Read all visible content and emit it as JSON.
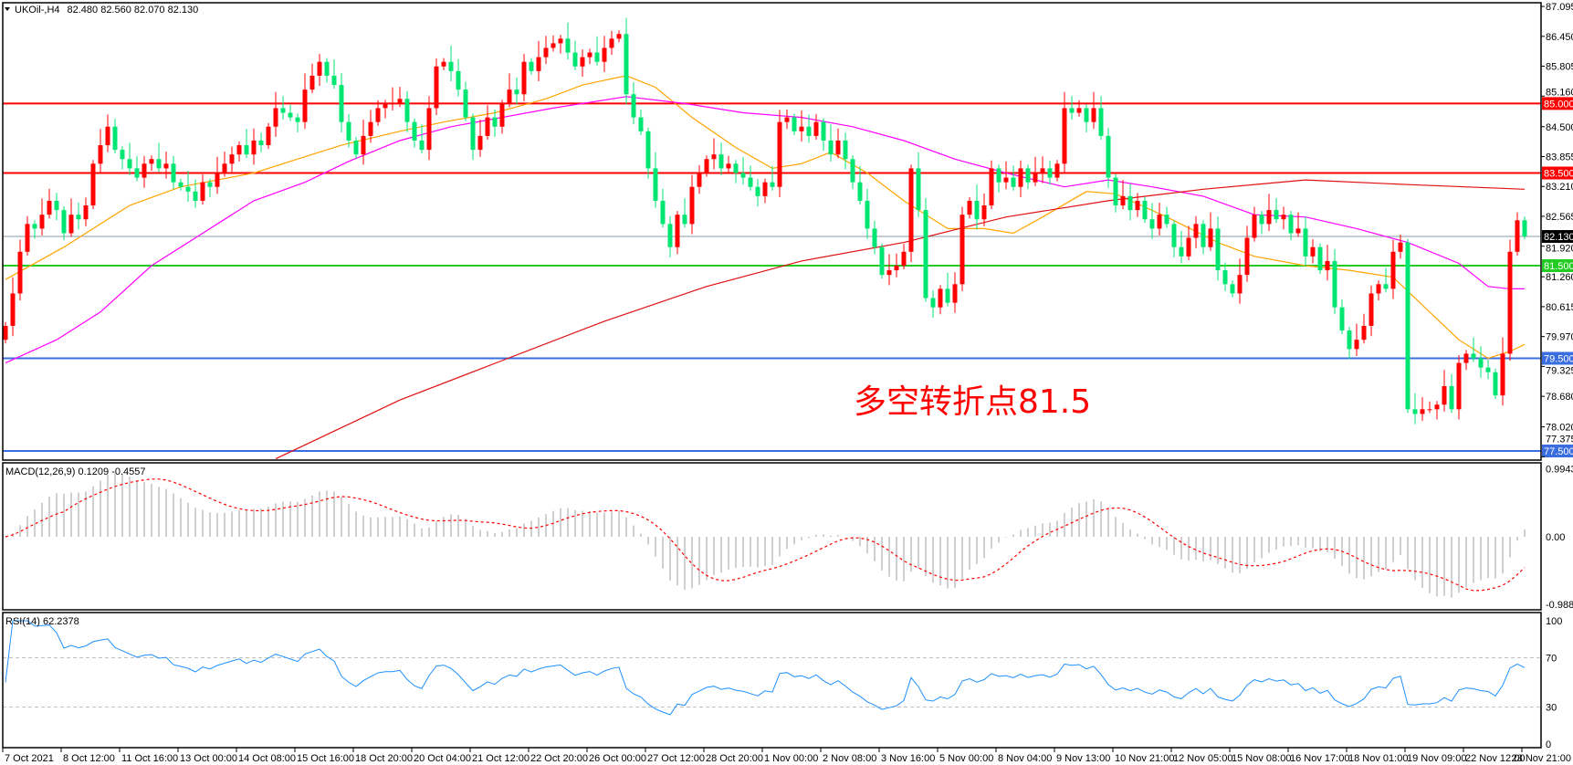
{
  "header": {
    "symbol_label": "UKOil-,H4",
    "ohlc": "82.480 82.560 82.070 82.130"
  },
  "annotation": {
    "text": "多空转折点81.5",
    "color": "#ff0000"
  },
  "chart_data": {
    "type": "candlestick",
    "symbol": "UKOil-",
    "timeframe": "H4",
    "colors": {
      "bull": "#ff0000",
      "bear": "#00e673",
      "ma_fast": "#ffa500",
      "ma_mid": "#ff00ff",
      "ma_slow": "#e01010",
      "rsi": "#1e90ff",
      "macd_hist": "#c0c0c0",
      "macd_signal": "#ff0000"
    },
    "ohlc_last": {
      "open": 82.48,
      "high": 82.56,
      "low": 82.07,
      "close": 82.13
    },
    "closes": [
      80.2,
      80.9,
      81.8,
      82.4,
      82.3,
      82.6,
      82.9,
      82.7,
      82.2,
      82.6,
      82.5,
      82.8,
      83.7,
      84.1,
      84.5,
      84.0,
      83.8,
      83.6,
      83.4,
      83.7,
      83.8,
      83.6,
      83.7,
      83.3,
      83.2,
      83.1,
      82.9,
      83.3,
      83.2,
      83.5,
      83.7,
      83.9,
      84.1,
      83.9,
      84.2,
      84.1,
      84.5,
      84.9,
      84.8,
      84.7,
      84.6,
      85.3,
      85.6,
      85.9,
      85.6,
      85.4,
      84.6,
      84.2,
      83.9,
      84.3,
      84.6,
      84.9,
      85.0,
      85.0,
      85.1,
      84.6,
      84.2,
      84.0,
      84.9,
      85.8,
      85.9,
      85.7,
      85.3,
      84.7,
      84.0,
      84.3,
      84.7,
      84.5,
      85.0,
      85.3,
      85.2,
      85.9,
      85.7,
      86.0,
      86.2,
      86.3,
      86.4,
      86.1,
      85.8,
      86.0,
      86.1,
      85.9,
      86.2,
      86.4,
      86.5,
      85.2,
      84.7,
      84.4,
      83.6,
      82.9,
      82.4,
      81.9,
      82.6,
      82.4,
      83.2,
      83.5,
      83.8,
      83.9,
      83.6,
      83.7,
      83.5,
      83.4,
      83.2,
      83.0,
      83.3,
      83.2,
      84.6,
      84.7,
      84.4,
      84.5,
      84.3,
      84.6,
      84.2,
      83.9,
      84.2,
      83.8,
      83.3,
      82.9,
      82.3,
      81.9,
      81.3,
      81.4,
      81.5,
      81.8,
      83.6,
      82.7,
      80.8,
      80.6,
      81.0,
      80.7,
      81.1,
      82.6,
      82.9,
      82.5,
      82.8,
      83.6,
      83.3,
      83.4,
      83.2,
      83.6,
      83.3,
      83.5,
      83.6,
      83.4,
      83.7,
      84.9,
      84.8,
      84.9,
      84.6,
      84.9,
      84.3,
      83.4,
      82.8,
      83.0,
      82.7,
      82.9,
      82.5,
      82.3,
      82.6,
      82.4,
      81.9,
      81.7,
      82.1,
      82.4,
      81.9,
      82.3,
      81.4,
      81.1,
      80.9,
      81.3,
      82.1,
      82.6,
      82.4,
      82.7,
      82.5,
      82.6,
      82.2,
      82.3,
      81.7,
      81.9,
      81.4,
      81.6,
      80.6,
      80.1,
      79.7,
      79.9,
      80.2,
      80.9,
      81.1,
      81.0,
      81.8,
      82.0,
      78.4,
      78.3,
      78.4,
      78.4,
      78.5,
      78.9,
      78.4,
      79.4,
      79.6,
      79.5,
      79.3,
      79.2,
      78.7,
      79.6,
      81.8,
      82.48,
      82.13
    ],
    "price_axis": {
      "range": [
        77.375,
        87.095
      ],
      "ticks": [
        "87.095",
        "86.450",
        "85.805",
        "85.160",
        "84.500",
        "83.855",
        "83.210",
        "82.565",
        "81.920",
        "81.260",
        "80.615",
        "79.970",
        "79.325",
        "78.680",
        "78.020",
        "77.375"
      ]
    },
    "time_axis": {
      "labels": [
        "7 Oct 2021",
        "8 Oct 12:00",
        "11 Oct 16:00",
        "13 Oct 00:00",
        "14 Oct 08:00",
        "15 Oct 16:00",
        "18 Oct 20:00",
        "20 Oct 04:00",
        "21 Oct 12:00",
        "22 Oct 20:00",
        "26 Oct 00:00",
        "27 Oct 12:00",
        "28 Oct 20:00",
        "1 Nov 00:00",
        "2 Nov 08:00",
        "3 Nov 16:00",
        "5 Nov 00:00",
        "8 Nov 04:00",
        "9 Nov 13:00",
        "10 Nov 21:00",
        "12 Nov 05:00",
        "15 Nov 08:00",
        "16 Nov 17:00",
        "18 Nov 01:00",
        "19 Nov 09:00",
        "22 Nov 12:00",
        "23 Nov 21:00"
      ]
    },
    "horizontal_lines": [
      {
        "price": 85.0,
        "label": "85.000",
        "color": "#ff0000"
      },
      {
        "price": 83.5,
        "label": "83.500",
        "color": "#ff0000"
      },
      {
        "price": 81.5,
        "label": "81.500",
        "color": "#22cc22"
      },
      {
        "price": 79.5,
        "label": "79.500",
        "color": "#3a6ee0"
      },
      {
        "price": 77.5,
        "label": "77.500",
        "color": "#3a6ee0"
      }
    ],
    "current_price": {
      "value": 82.13,
      "label": "82.130",
      "color": "#000000"
    },
    "moving_averages": [
      {
        "key": "ma_fast",
        "points": [
          [
            0,
            81.2
          ],
          [
            8,
            81.9
          ],
          [
            17,
            82.8
          ],
          [
            24,
            83.2
          ],
          [
            34,
            83.5
          ],
          [
            41,
            83.85
          ],
          [
            46,
            84.1
          ],
          [
            54,
            84.4
          ],
          [
            60,
            84.6
          ],
          [
            67,
            84.8
          ],
          [
            74,
            85.1
          ],
          [
            79,
            85.4
          ],
          [
            85,
            85.6
          ],
          [
            89,
            85.35
          ],
          [
            94,
            84.7
          ],
          [
            100,
            84.05
          ],
          [
            105,
            83.6
          ],
          [
            109,
            83.7
          ],
          [
            113,
            83.95
          ],
          [
            118,
            83.5
          ],
          [
            123,
            82.9
          ],
          [
            129,
            82.3
          ],
          [
            134,
            82.3
          ],
          [
            138,
            82.2
          ],
          [
            142,
            82.55
          ],
          [
            148,
            83.1
          ],
          [
            152,
            83.05
          ],
          [
            159,
            82.55
          ],
          [
            166,
            82.0
          ],
          [
            171,
            81.7
          ],
          [
            178,
            81.5
          ],
          [
            184,
            81.4
          ],
          [
            190,
            81.25
          ],
          [
            195,
            80.5
          ],
          [
            199,
            79.9
          ],
          [
            203,
            79.5
          ],
          [
            206,
            79.65
          ],
          [
            208,
            79.8
          ]
        ]
      },
      {
        "key": "ma_mid",
        "points": [
          [
            0,
            79.4
          ],
          [
            7,
            79.9
          ],
          [
            13,
            80.5
          ],
          [
            20,
            81.5
          ],
          [
            27,
            82.2
          ],
          [
            34,
            82.9
          ],
          [
            41,
            83.3
          ],
          [
            47,
            83.75
          ],
          [
            54,
            84.2
          ],
          [
            61,
            84.5
          ],
          [
            68,
            84.7
          ],
          [
            75,
            84.9
          ],
          [
            85,
            85.15
          ],
          [
            93,
            85.0
          ],
          [
            101,
            84.8
          ],
          [
            109,
            84.7
          ],
          [
            116,
            84.5
          ],
          [
            123,
            84.2
          ],
          [
            130,
            83.8
          ],
          [
            137,
            83.5
          ],
          [
            145,
            83.2
          ],
          [
            151,
            83.35
          ],
          [
            157,
            83.2
          ],
          [
            164,
            83.0
          ],
          [
            171,
            82.6
          ],
          [
            178,
            82.55
          ],
          [
            185,
            82.3
          ],
          [
            192,
            82.0
          ],
          [
            199,
            81.55
          ],
          [
            203,
            81.05
          ],
          [
            206,
            81.0
          ],
          [
            208,
            81.0
          ]
        ]
      },
      {
        "key": "ma_slow",
        "points": [
          [
            37,
            77.33
          ],
          [
            54,
            78.6
          ],
          [
            68,
            79.45
          ],
          [
            82,
            80.3
          ],
          [
            96,
            81.05
          ],
          [
            109,
            81.6
          ],
          [
            123,
            82.0
          ],
          [
            137,
            82.55
          ],
          [
            151,
            82.9
          ],
          [
            164,
            83.15
          ],
          [
            178,
            83.35
          ],
          [
            192,
            83.25
          ],
          [
            208,
            83.15
          ]
        ]
      }
    ],
    "macd": {
      "label": "MACD(12,26,9) 0.1209 -0.4557",
      "params": [
        12,
        26,
        9
      ],
      "range": [
        -0.9882,
        0.9943
      ],
      "ticks": [
        "0.9943",
        "0.00",
        "-0.9882"
      ]
    },
    "rsi": {
      "label": "RSI(14) 62.2378",
      "period": 14,
      "range": [
        0,
        100
      ],
      "levels": [
        70,
        30
      ],
      "ticks": [
        "100",
        "70",
        "30",
        "0"
      ]
    }
  }
}
